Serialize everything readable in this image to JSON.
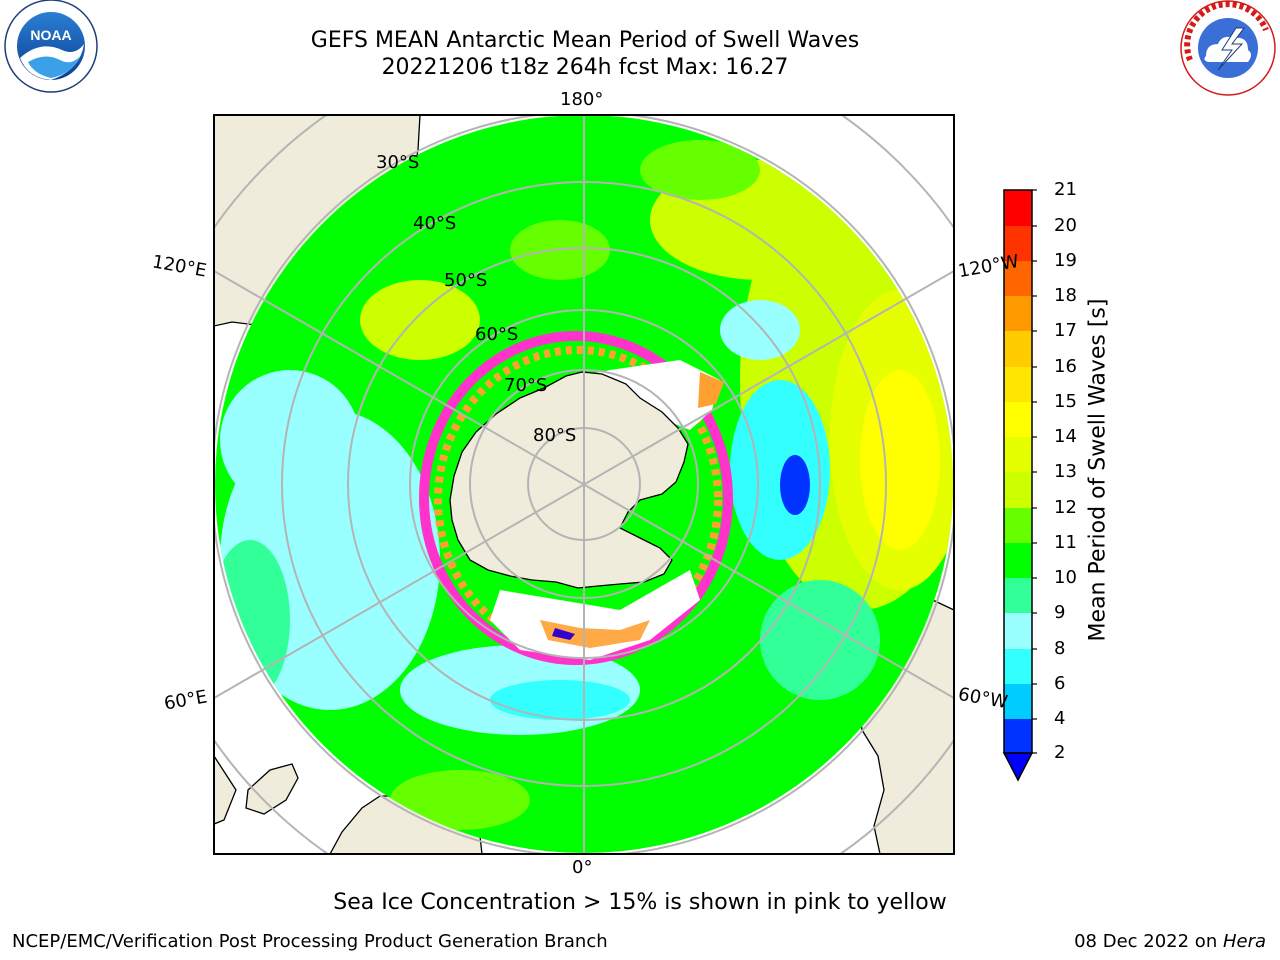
{
  "header": {
    "title_line1": "GEFS MEAN Antarctic Mean Period of Swell Waves",
    "title_line2": "20221206 t18z 264h fcst   Max: 16.27"
  },
  "logos": {
    "left": "NOAA",
    "left_ring_text": "NATIONAL OCEANIC AND ATMOSPHERIC ADMINISTRATION · U.S. DEPARTMENT OF COMMERCE",
    "right_ring_text": "NATIONAL WEATHER SERVICE"
  },
  "map": {
    "projection": "south polar stereographic",
    "longitude_labels": {
      "top": "180°",
      "upper_left": "120°E",
      "upper_right": "120°W",
      "lower_left": "60°E",
      "lower_right": "60°W",
      "bottom": "0°"
    },
    "latitude_labels": [
      "30°S",
      "40°S",
      "50°S",
      "60°S",
      "70°S",
      "80°S"
    ],
    "colors": {
      "land": "#efecdc",
      "graticule": "#b4b4b4",
      "sea_ice_low": "#ff33cc",
      "sea_ice_high": "#ffa033"
    }
  },
  "colorbar": {
    "label": "Mean Period of Swell Waves [s]",
    "ticks": [
      "2",
      "4",
      "6",
      "8",
      "9",
      "10",
      "11",
      "12",
      "13",
      "14",
      "15",
      "16",
      "17",
      "18",
      "19",
      "20",
      "21"
    ],
    "colors": [
      "#0033ff",
      "#00ccff",
      "#33ffff",
      "#99ffff",
      "#33ff99",
      "#00ff00",
      "#66ff00",
      "#ccff00",
      "#e6ff00",
      "#ffff00",
      "#ffe600",
      "#ffcc00",
      "#ff9900",
      "#ff6600",
      "#ff3300",
      "#ff0000"
    ],
    "extend_min_color": "#0000ff"
  },
  "subtitle": "Sea Ice Concentration > 15% is shown in pink to yellow",
  "footer": {
    "left": "NCEP/EMC/Verification Post Processing Product Generation Branch",
    "right_date": "08 Dec 2022 on ",
    "right_machine": "Hera"
  }
}
